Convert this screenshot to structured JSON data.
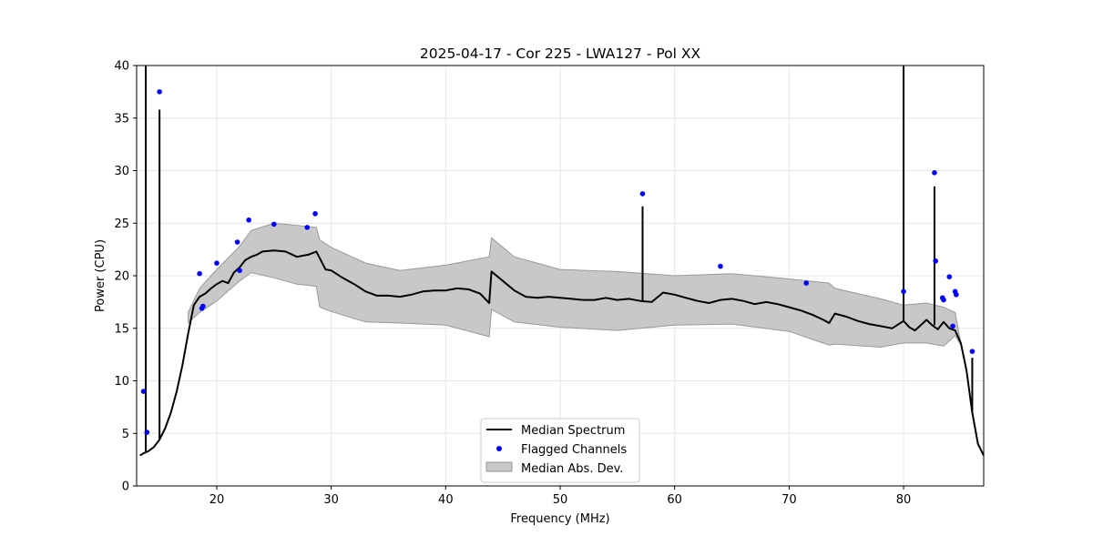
{
  "chart_data": {
    "type": "line",
    "title": "2025-04-17 - Cor 225 - LWA127 - Pol XX",
    "xlabel": "Frequency (MHz)",
    "ylabel": "Power (CPU)",
    "xlim": [
      13.0,
      87.0
    ],
    "ylim": [
      0,
      40
    ],
    "xticks": [
      20,
      30,
      40,
      50,
      60,
      70,
      80
    ],
    "xtick_labels": [
      "20",
      "30",
      "40",
      "50",
      "60",
      "70",
      "80"
    ],
    "yticks": [
      0,
      5,
      10,
      15,
      20,
      25,
      30,
      35,
      40
    ],
    "ytick_labels": [
      "0",
      "5",
      "10",
      "15",
      "20",
      "25",
      "30",
      "35",
      "40"
    ],
    "grid": true,
    "legend_position": "bottom-center",
    "legend": [
      "Median Spectrum",
      "Flagged Channels",
      "Median Abs. Dev."
    ],
    "colors": {
      "median": "#000000",
      "flagged": "#0000ff",
      "mad_fill": "#c8c8c8",
      "mad_edge": "#999999",
      "grid": "#e6e6e6"
    },
    "series": [
      {
        "name": "Median Spectrum",
        "x": [
          13.3,
          13.6,
          14.0,
          14.5,
          15.0,
          15.5,
          16.0,
          16.5,
          17.0,
          17.5,
          18.0,
          18.5,
          19.0,
          19.5,
          20.0,
          20.5,
          21.0,
          21.5,
          22.0,
          22.5,
          23.0,
          23.5,
          24.0,
          25.0,
          26.0,
          27.0,
          28.0,
          28.7,
          29.5,
          30.0,
          31.0,
          32.0,
          33.0,
          34.0,
          35.0,
          36.0,
          37.0,
          38.0,
          39.0,
          40.0,
          41.0,
          42.0,
          43.0,
          43.8,
          44.0,
          45.0,
          46.0,
          47.0,
          48.0,
          49.0,
          50.0,
          51.0,
          52.0,
          53.0,
          54.0,
          55.0,
          56.0,
          57.0,
          58.0,
          59.0,
          60.0,
          61.0,
          62.0,
          63.0,
          64.0,
          65.0,
          66.0,
          67.0,
          68.0,
          69.0,
          70.0,
          71.0,
          72.0,
          73.0,
          73.5,
          74.0,
          75.0,
          76.0,
          77.0,
          78.0,
          79.0,
          80.0,
          80.5,
          81.0,
          82.0,
          82.5,
          83.0,
          83.5,
          84.0,
          84.5,
          85.0,
          85.5,
          86.0,
          86.5,
          87.0
        ],
        "y": [
          2.9,
          3.1,
          3.3,
          3.7,
          4.4,
          5.5,
          7.0,
          9.0,
          11.5,
          14.5,
          17.2,
          18.0,
          18.3,
          18.8,
          19.2,
          19.5,
          19.3,
          20.3,
          20.8,
          21.5,
          21.8,
          22.0,
          22.3,
          22.4,
          22.3,
          21.8,
          22.0,
          22.3,
          20.6,
          20.5,
          19.8,
          19.2,
          18.5,
          18.1,
          18.1,
          18.0,
          18.2,
          18.5,
          18.6,
          18.6,
          18.8,
          18.7,
          18.3,
          17.4,
          20.4,
          19.5,
          18.6,
          18.0,
          17.9,
          18.0,
          17.9,
          17.8,
          17.7,
          17.7,
          17.9,
          17.7,
          17.8,
          17.6,
          17.5,
          18.4,
          18.2,
          17.9,
          17.6,
          17.4,
          17.7,
          17.8,
          17.6,
          17.3,
          17.5,
          17.3,
          17.0,
          16.7,
          16.3,
          15.8,
          15.5,
          16.4,
          16.1,
          15.7,
          15.4,
          15.2,
          15.0,
          15.7,
          15.1,
          14.8,
          15.8,
          15.3,
          14.9,
          15.6,
          15.0,
          14.8,
          13.6,
          11.0,
          7.0,
          4.0,
          2.9
        ]
      }
    ],
    "spikes": [
      {
        "x": 13.8,
        "y": 40
      },
      {
        "x": 15.0,
        "y": 35.8
      },
      {
        "x": 57.2,
        "y": 26.6
      },
      {
        "x": 80.0,
        "y": 40
      },
      {
        "x": 82.7,
        "y": 28.5
      },
      {
        "x": 86.0,
        "y": 12.2
      }
    ],
    "mad_band": {
      "x": [
        17.5,
        18.5,
        20.0,
        22.0,
        23.0,
        25.0,
        27.0,
        28.7,
        29.0,
        30.0,
        33.0,
        36.0,
        40.0,
        43.8,
        44.0,
        46.0,
        50.0,
        55.0,
        60.0,
        65.0,
        70.0,
        73.5,
        74.0,
        78.0,
        80.0,
        82.0,
        83.5,
        84.5,
        85.0
      ],
      "upper": [
        16.5,
        18.8,
        20.6,
        22.8,
        24.3,
        25.0,
        24.8,
        24.6,
        23.4,
        22.7,
        21.2,
        20.5,
        21.0,
        21.8,
        23.6,
        21.8,
        20.6,
        20.4,
        20.0,
        20.2,
        19.7,
        19.3,
        18.8,
        17.8,
        17.2,
        17.4,
        17.0,
        16.5,
        13.6
      ],
      "lower": [
        15.5,
        16.5,
        17.6,
        19.5,
        20.3,
        19.8,
        19.2,
        19.0,
        17.0,
        16.6,
        15.6,
        15.5,
        15.3,
        14.2,
        16.8,
        15.6,
        15.1,
        14.8,
        15.3,
        15.4,
        14.7,
        13.4,
        13.5,
        13.2,
        13.6,
        13.6,
        13.3,
        14.3,
        13.4
      ]
    },
    "flagged": {
      "x": [
        13.6,
        13.9,
        15.0,
        18.5,
        18.7,
        18.8,
        20.0,
        21.8,
        22.0,
        22.8,
        25.0,
        27.9,
        28.6,
        57.2,
        64.0,
        71.5,
        80.0,
        82.7,
        82.8,
        83.4,
        83.5,
        84.0,
        84.3,
        84.5,
        84.6,
        86.0
      ],
      "y": [
        9.0,
        5.1,
        37.5,
        20.2,
        16.9,
        17.1,
        21.2,
        23.2,
        20.5,
        25.3,
        24.9,
        24.6,
        25.9,
        27.8,
        20.9,
        19.3,
        18.5,
        29.8,
        21.4,
        17.9,
        17.7,
        19.9,
        15.2,
        18.5,
        18.2,
        12.8
      ]
    }
  }
}
